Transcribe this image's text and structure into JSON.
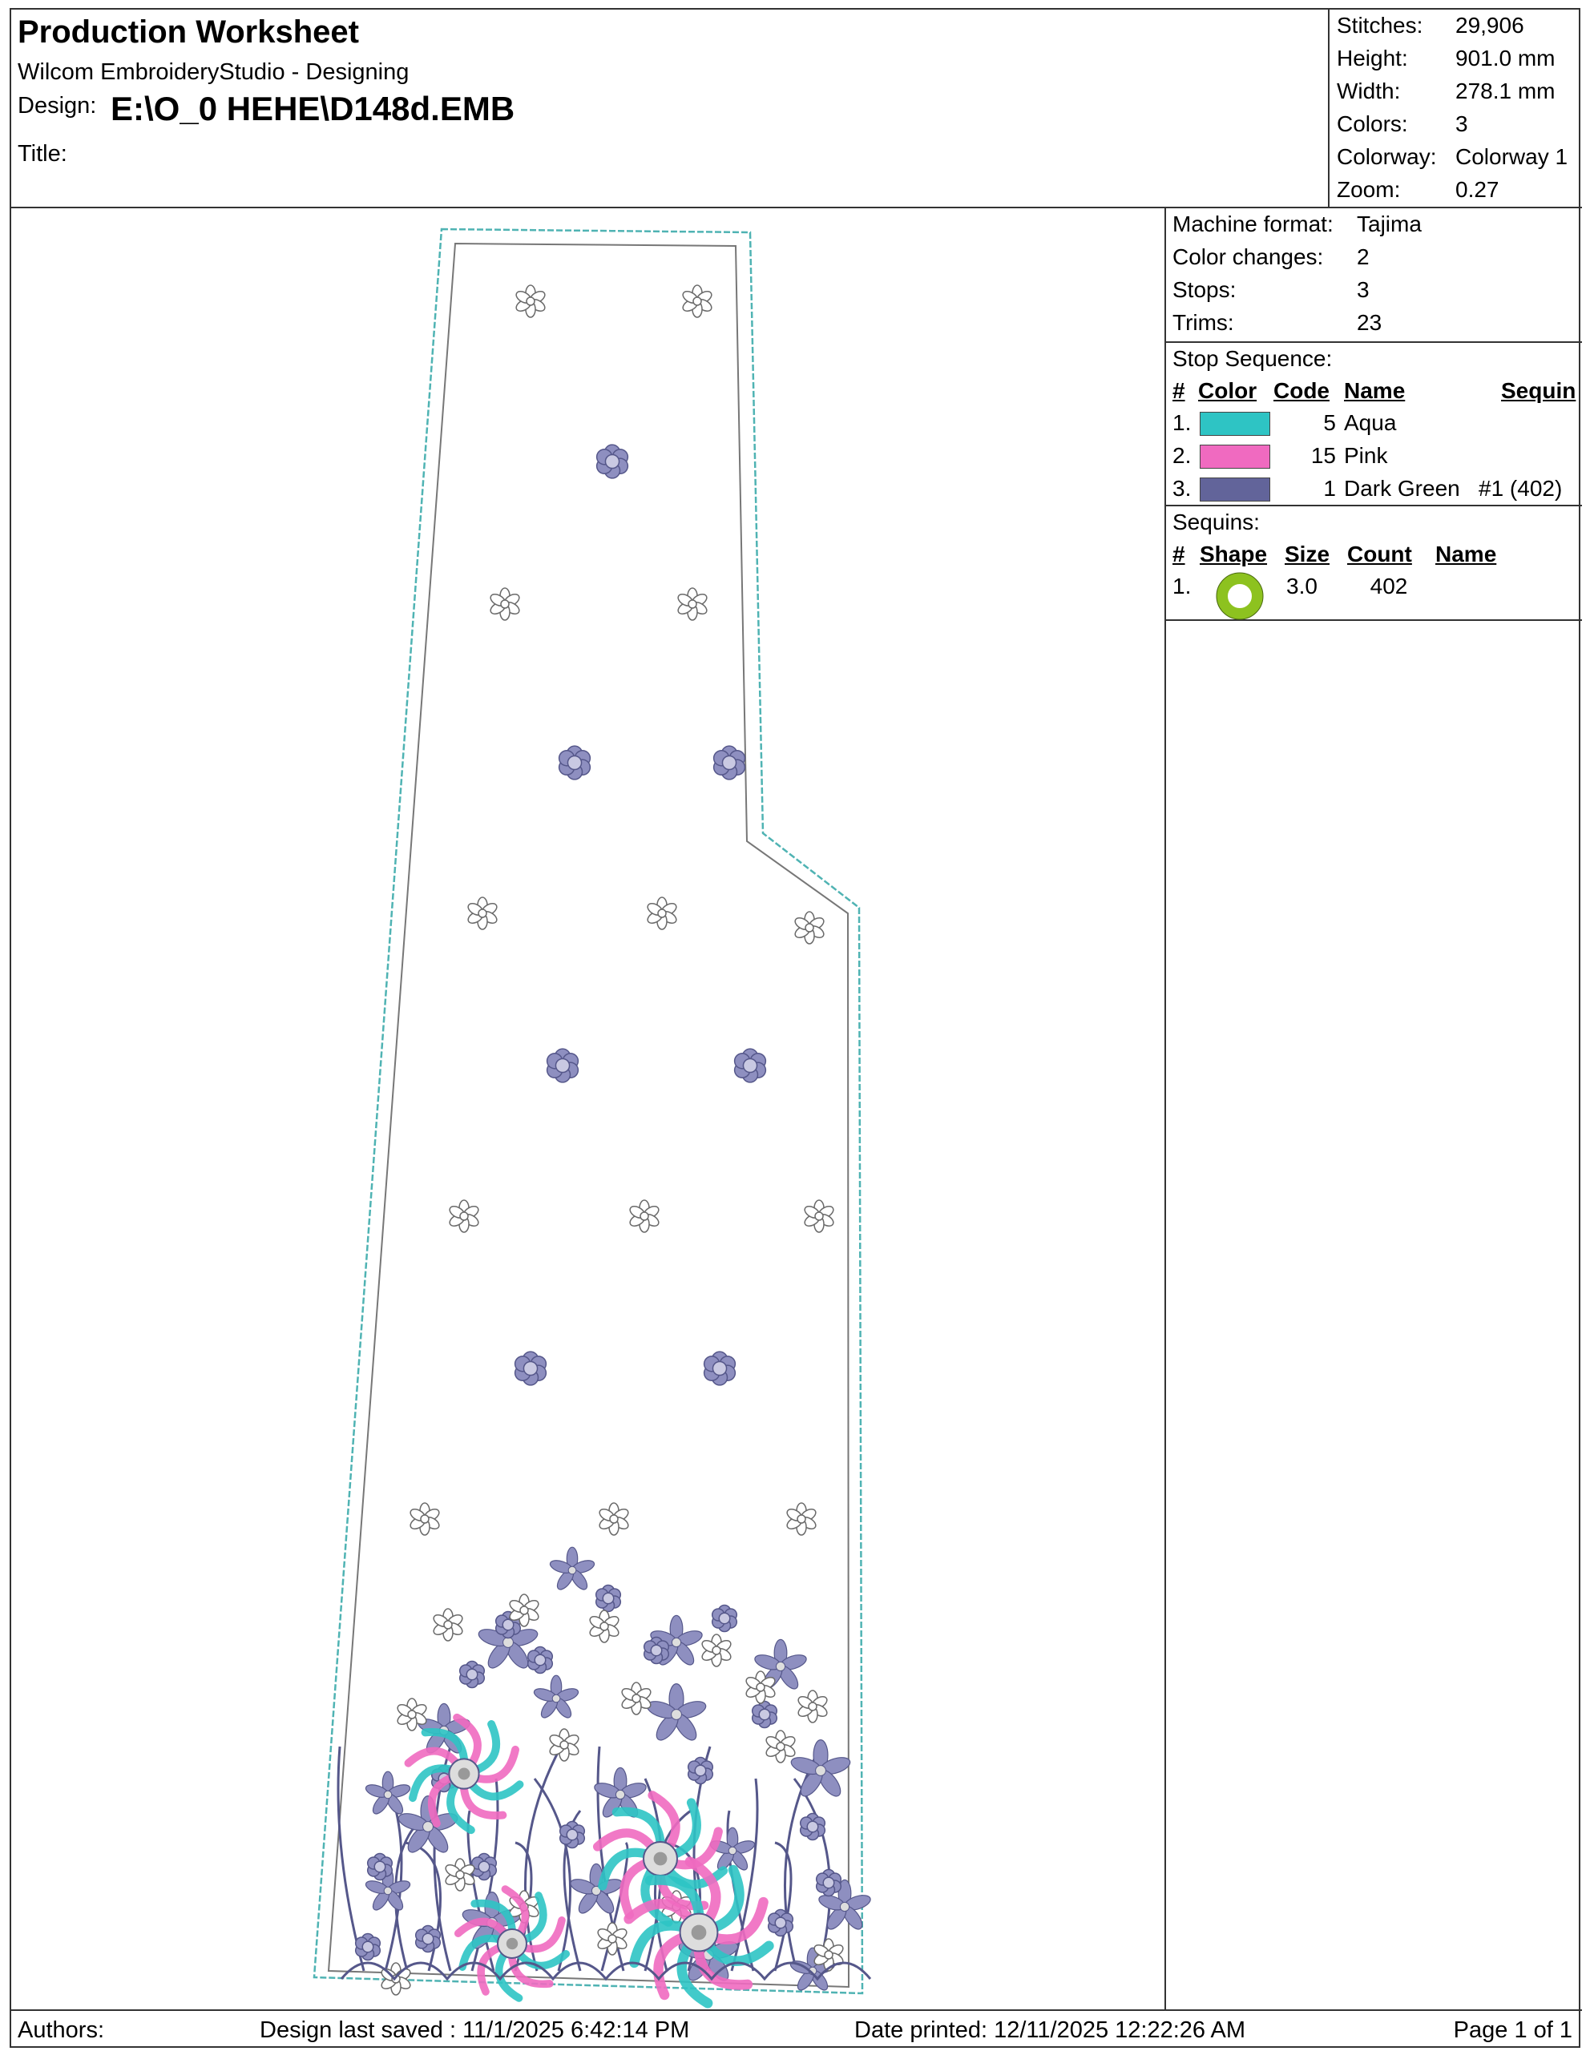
{
  "header": {
    "title": "Production Worksheet",
    "software": "Wilcom EmbroideryStudio - Designing",
    "design_label": "Design:",
    "design_value": "E:\\O_0 HEHE\\D148d.EMB",
    "title_label": "Title:"
  },
  "stats": [
    {
      "label": "Stitches:",
      "value": "29,906"
    },
    {
      "label": "Height:",
      "value": "901.0 mm"
    },
    {
      "label": "Width:",
      "value": "278.1 mm"
    },
    {
      "label": "Colors:",
      "value": "3"
    },
    {
      "label": "Colorway:",
      "value": "Colorway 1"
    },
    {
      "label": "Zoom:",
      "value": "0.27"
    }
  ],
  "machine": [
    {
      "label": "Machine format:",
      "value": "Tajima"
    },
    {
      "label": "Color changes:",
      "value": "2"
    },
    {
      "label": "Stops:",
      "value": "3"
    },
    {
      "label": "Trims:",
      "value": "23"
    }
  ],
  "stop_sequence": {
    "heading": "Stop Sequence:",
    "columns": {
      "num": "#",
      "color": "Color",
      "code": "Code",
      "name": "Name",
      "sequin": "Sequin"
    },
    "rows": [
      {
        "num": "1.",
        "color": "#2EC4C4",
        "code": "5",
        "name": "Aqua",
        "sequin": ""
      },
      {
        "num": "2.",
        "color": "#F06AC0",
        "code": "15",
        "name": "Pink",
        "sequin": ""
      },
      {
        "num": "3.",
        "color": "#62649A",
        "code": "1",
        "name": "Dark Green",
        "sequin": "#1 (402)"
      }
    ]
  },
  "sequins": {
    "heading": "Sequins:",
    "columns": {
      "num": "#",
      "shape": "Shape",
      "size": "Size",
      "count": "Count",
      "name": "Name"
    },
    "rows": [
      {
        "num": "1.",
        "shape_icon": "ring-icon",
        "shape_color": "#8DC21F",
        "size": "3.0",
        "count": "402",
        "name": ""
      }
    ]
  },
  "footer": {
    "authors": "Authors:",
    "last_saved": "Design last saved : 11/1/2025 6:42:14 PM",
    "printed": "Date printed: 12/11/2025 12:22:26 AM",
    "page": "Page 1 of 1"
  },
  "colors": {
    "border": "#333333",
    "outline_aqua": "#4FB3B3",
    "motif_fill": "#8E8FC0",
    "motif_stroke": "#55578A"
  }
}
